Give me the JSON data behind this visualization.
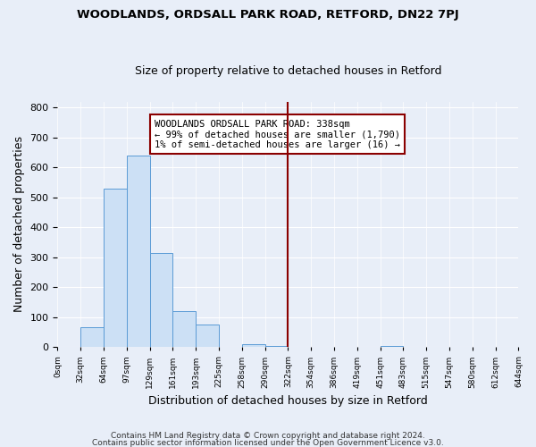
{
  "title1": "WOODLANDS, ORDSALL PARK ROAD, RETFORD, DN22 7PJ",
  "title2": "Size of property relative to detached houses in Retford",
  "xlabel": "Distribution of detached houses by size in Retford",
  "ylabel": "Number of detached properties",
  "footer1": "Contains HM Land Registry data © Crown copyright and database right 2024.",
  "footer2": "Contains public sector information licensed under the Open Government Licence v3.0.",
  "annotation_line1": "WOODLANDS ORDSALL PARK ROAD: 338sqm",
  "annotation_line2": "← 99% of detached houses are smaller (1,790)",
  "annotation_line3": "1% of semi-detached houses are larger (16) →",
  "bar_color": "#cce0f5",
  "bar_edge_color": "#5b9bd5",
  "marker_line_color": "#8b0000",
  "background_color": "#e8eef8",
  "fig_background_color": "#e8eef8",
  "annotation_box_color": "#ffffff",
  "annotation_box_edge": "#8b0000",
  "bins": [
    "0sqm",
    "32sqm",
    "64sqm",
    "97sqm",
    "129sqm",
    "161sqm",
    "193sqm",
    "225sqm",
    "258sqm",
    "290sqm",
    "322sqm",
    "354sqm",
    "386sqm",
    "419sqm",
    "451sqm",
    "483sqm",
    "515sqm",
    "547sqm",
    "580sqm",
    "612sqm",
    "644sqm"
  ],
  "values": [
    0,
    65,
    530,
    640,
    315,
    120,
    75,
    0,
    10,
    5,
    0,
    0,
    0,
    0,
    5,
    0,
    0,
    0,
    0,
    0
  ],
  "marker_bin_index": 10,
  "ylim": [
    0,
    820
  ],
  "yticks": [
    0,
    100,
    200,
    300,
    400,
    500,
    600,
    700,
    800
  ]
}
